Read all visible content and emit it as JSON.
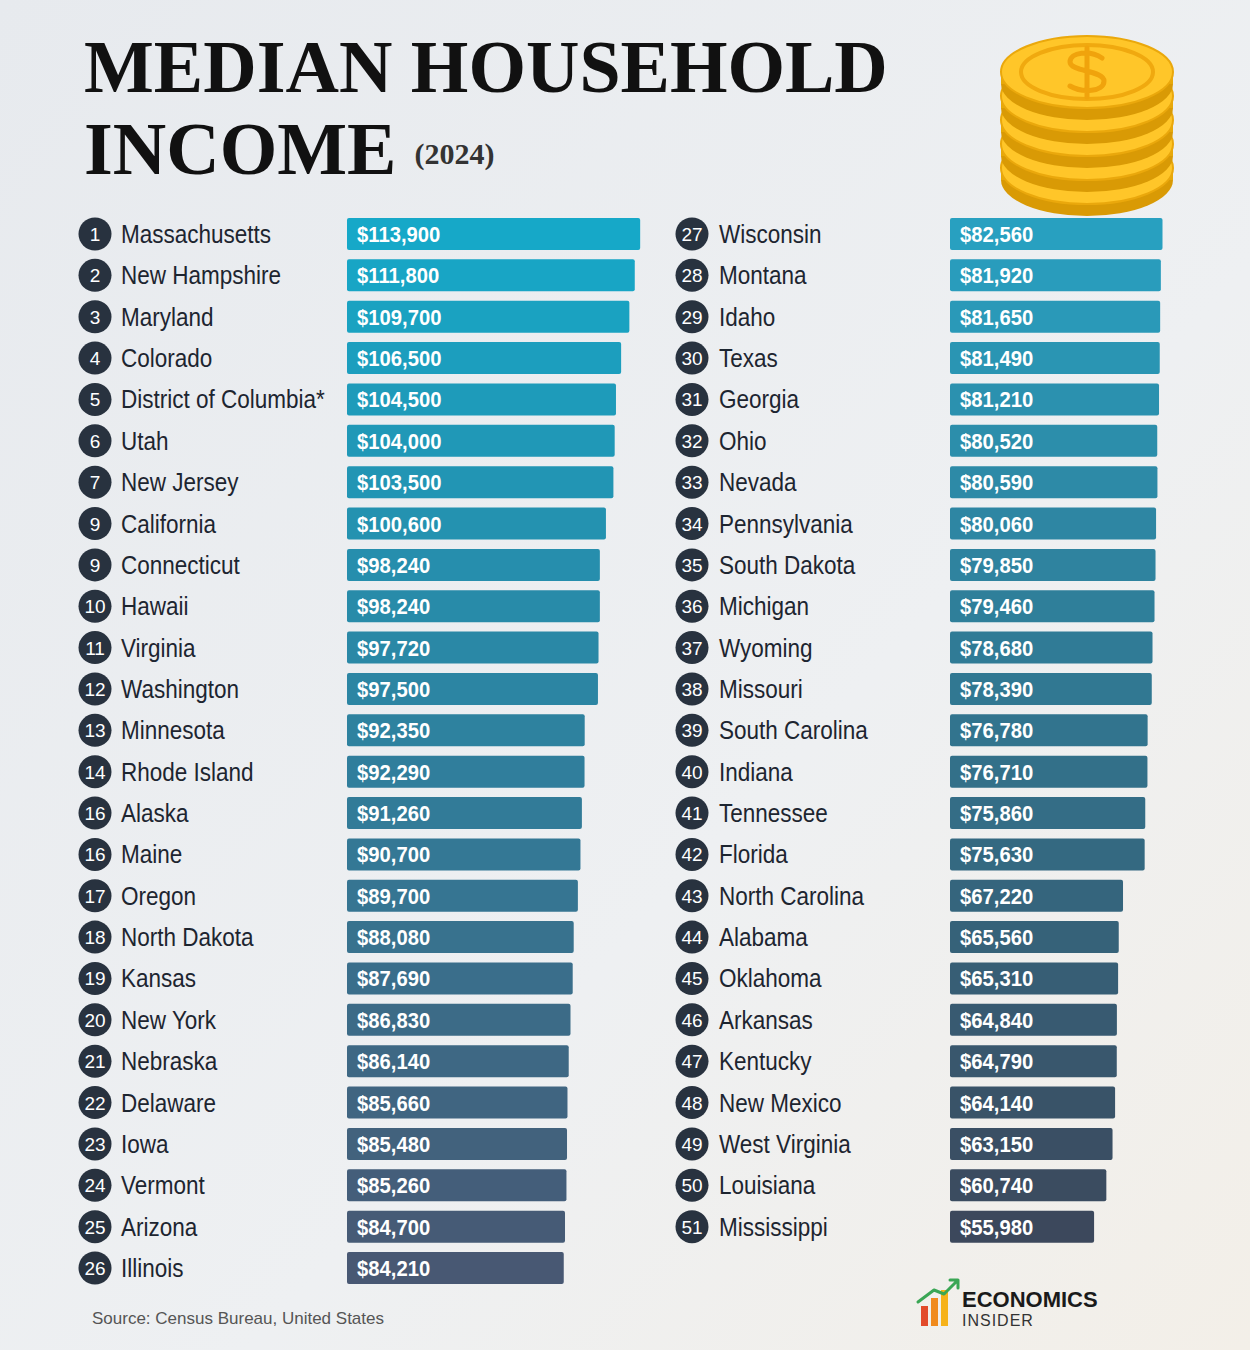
{
  "chart_data": {
    "type": "bar",
    "orientation": "horizontal",
    "title": "MEDIAN HOUSEHOLD INCOME",
    "subtitle": "(2024)",
    "rank_labels": [
      "1",
      "2",
      "3",
      "4",
      "5",
      "6",
      "7",
      "9",
      "9",
      "10",
      "11",
      "12",
      "13",
      "14",
      "16",
      "16",
      "17",
      "18",
      "19",
      "20",
      "21",
      "22",
      "23",
      "24",
      "25",
      "26",
      "27",
      "28",
      "29",
      "30",
      "31",
      "32",
      "33",
      "34",
      "35",
      "36",
      "37",
      "38",
      "39",
      "40",
      "41",
      "42",
      "43",
      "44",
      "45",
      "46",
      "47",
      "48",
      "49",
      "50",
      "51"
    ],
    "categories": [
      "Massachusetts",
      "New Hampshire",
      "Maryland",
      "Colorado",
      "District of Columbia*",
      "Utah",
      "New Jersey",
      "California",
      "Connecticut",
      "Hawaii",
      "Virginia",
      "Washington",
      "Minnesota",
      "Rhode Island",
      "Alaska",
      "Maine",
      "Oregon",
      "North Dakota",
      "Kansas",
      "New York",
      "Nebraska",
      "Delaware",
      "Iowa",
      "Vermont",
      "Arizona",
      "Illinois",
      "Wisconsin",
      "Montana",
      "Idaho",
      "Texas",
      "Georgia",
      "Ohio",
      "Nevada",
      "Pennsylvania",
      "South Dakota",
      "Michigan",
      "Wyoming",
      "Missouri",
      "South Carolina",
      "Indiana",
      "Tennessee",
      "Florida",
      "North Carolina",
      "Alabama",
      "Oklahoma",
      "Arkansas",
      "Kentucky",
      "New Mexico",
      "West Virginia",
      "Louisiana",
      "Mississippi"
    ],
    "values": [
      113900,
      111800,
      109700,
      106500,
      104500,
      104000,
      103500,
      100600,
      98240,
      98240,
      97720,
      97500,
      92350,
      92290,
      91260,
      90700,
      89700,
      88080,
      87690,
      86830,
      86140,
      85660,
      85480,
      85260,
      84700,
      84210,
      82560,
      81920,
      81650,
      81490,
      81210,
      80520,
      80590,
      80060,
      79850,
      79460,
      78680,
      78390,
      76780,
      76710,
      75860,
      75630,
      67220,
      65560,
      65310,
      64840,
      64790,
      64140,
      63150,
      60740,
      55980
    ],
    "value_labels": [
      "$113,900",
      "$111,800",
      "$109,700",
      "$106,500",
      "$104,500",
      "$104,000",
      "$103,500",
      "$100,600",
      "$98,240",
      "$98,240",
      "$97,720",
      "$97,500",
      "$92,350",
      "$92,290",
      "$91,260",
      "$90,700",
      "$89,700",
      "$88,080",
      "$87,690",
      "$86,830",
      "$86,140",
      "$85,660",
      "$85,480",
      "$85,260",
      "$84,700",
      "$84,210",
      "$82,560",
      "$81,920",
      "$81,650",
      "$81,490",
      "$81,210",
      "$80,520",
      "$80,590",
      "$80,060",
      "$79,850",
      "$79,460",
      "$78,680",
      "$78,390",
      "$76,780",
      "$76,710",
      "$75,860",
      "$75,630",
      "$67,220",
      "$65,560",
      "$65,310",
      "$64,840",
      "$64,790",
      "$64,140",
      "$63,150",
      "$60,740",
      "$55,980"
    ],
    "colors": [
      "#16a8c8",
      "#18a5c5",
      "#1aa2c1",
      "#1c9ebe",
      "#1e9bba",
      "#2098b7",
      "#2295b4",
      "#2492b0",
      "#268ead",
      "#288ba9",
      "#2a88a6",
      "#2c85a3",
      "#2e829f",
      "#307e9c",
      "#327b98",
      "#347895",
      "#367592",
      "#38728e",
      "#3a6e8b",
      "#3c6b87",
      "#3e6884",
      "#406581",
      "#42627d",
      "#445e7a",
      "#465b76",
      "#485873",
      "#28a0c0",
      "#299cbc",
      "#2a99b8",
      "#2a95b3",
      "#2b91af",
      "#2c8eab",
      "#2d8aa7",
      "#2e86a3",
      "#2f839f",
      "#2f7f9a",
      "#307b96",
      "#317892",
      "#32748e",
      "#337089",
      "#346d86",
      "#346981",
      "#35657d",
      "#366279",
      "#375e75",
      "#385a71",
      "#39576d",
      "#395368",
      "#3a4f64",
      "#3b4c60",
      "#3c485c"
    ],
    "xlim": [
      0,
      115000
    ],
    "tick_labels": false,
    "grid": false,
    "data_labels": true
  },
  "footer": {
    "source": "Source: Census Bureau, United States",
    "logo": [
      "ECONOMICS",
      "INSIDER"
    ]
  }
}
